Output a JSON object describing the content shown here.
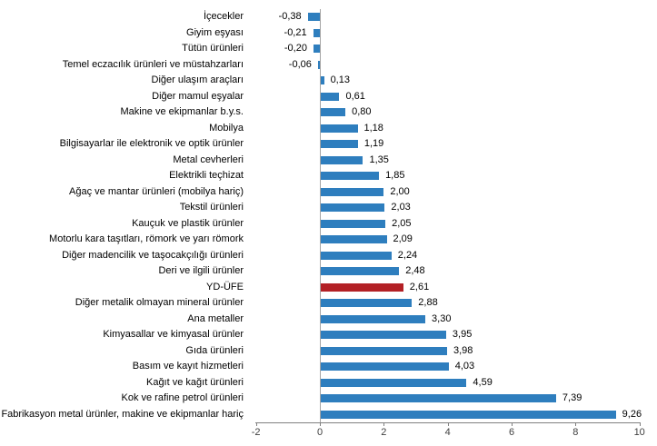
{
  "chart_data": {
    "type": "bar",
    "orientation": "horizontal",
    "categories": [
      "İçecekler",
      "Giyim eşyası",
      "Tütün ürünleri",
      "Temel eczacılık ürünleri ve müstahzarları",
      "Diğer ulaşım araçları",
      "Diğer mamul eşyalar",
      "Makine ve ekipmanlar b.y.s.",
      "Mobilya",
      "Bilgisayarlar ile elektronik ve optik ürünler",
      "Metal cevherleri",
      "Elektrikli teçhizat",
      "Ağaç ve mantar ürünleri (mobilya hariç)",
      "Tekstil ürünleri",
      "Kauçuk ve plastik ürünler",
      "Motorlu kara taşıtları, römork ve yarı römork",
      "Diğer madencilik ve taşocakçılığı ürünleri",
      "Deri ve ilgili ürünler",
      "YD-ÜFE",
      "Diğer metalik olmayan mineral ürünler",
      "Ana metaller",
      "Kimyasallar ve kimyasal ürünler",
      "Gıda ürünleri",
      "Basım ve kayıt hizmetleri",
      "Kağıt ve kağıt ürünleri",
      "Kok ve rafine petrol ürünleri",
      "Fabrikasyon metal ürünler, makine ve ekipmanlar hariç"
    ],
    "values": [
      -0.38,
      -0.21,
      -0.2,
      -0.06,
      0.13,
      0.61,
      0.8,
      1.18,
      1.19,
      1.35,
      1.85,
      2.0,
      2.03,
      2.05,
      2.09,
      2.24,
      2.48,
      2.61,
      2.88,
      3.3,
      3.95,
      3.98,
      4.03,
      4.59,
      7.39,
      9.26
    ],
    "value_labels": [
      "-0,38",
      "-0,21",
      "-0,20",
      "-0,06",
      "0,13",
      "0,61",
      "0,80",
      "1,18",
      "1,19",
      "1,35",
      "1,85",
      "2,00",
      "2,03",
      "2,05",
      "2,09",
      "2,24",
      "2,48",
      "2,61",
      "2,88",
      "3,30",
      "3,95",
      "3,98",
      "4,03",
      "4,59",
      "7,39",
      "9,26"
    ],
    "highlight_index": 17,
    "highlight_category": "YD-ÜFE",
    "colors": {
      "bar": "#2E7EBE",
      "highlight": "#B32025",
      "axis_line": "#808080",
      "category_axis_line": "#A6A6A6",
      "tick_label": "#404040",
      "label": "#000000"
    },
    "xlim": [
      -2,
      10
    ],
    "x_ticks": [
      -2,
      0,
      2,
      4,
      6,
      8,
      10
    ],
    "x_tick_labels": [
      "-2",
      "0",
      "2",
      "4",
      "6",
      "8",
      "10"
    ],
    "grid": "off",
    "legend": "none"
  }
}
